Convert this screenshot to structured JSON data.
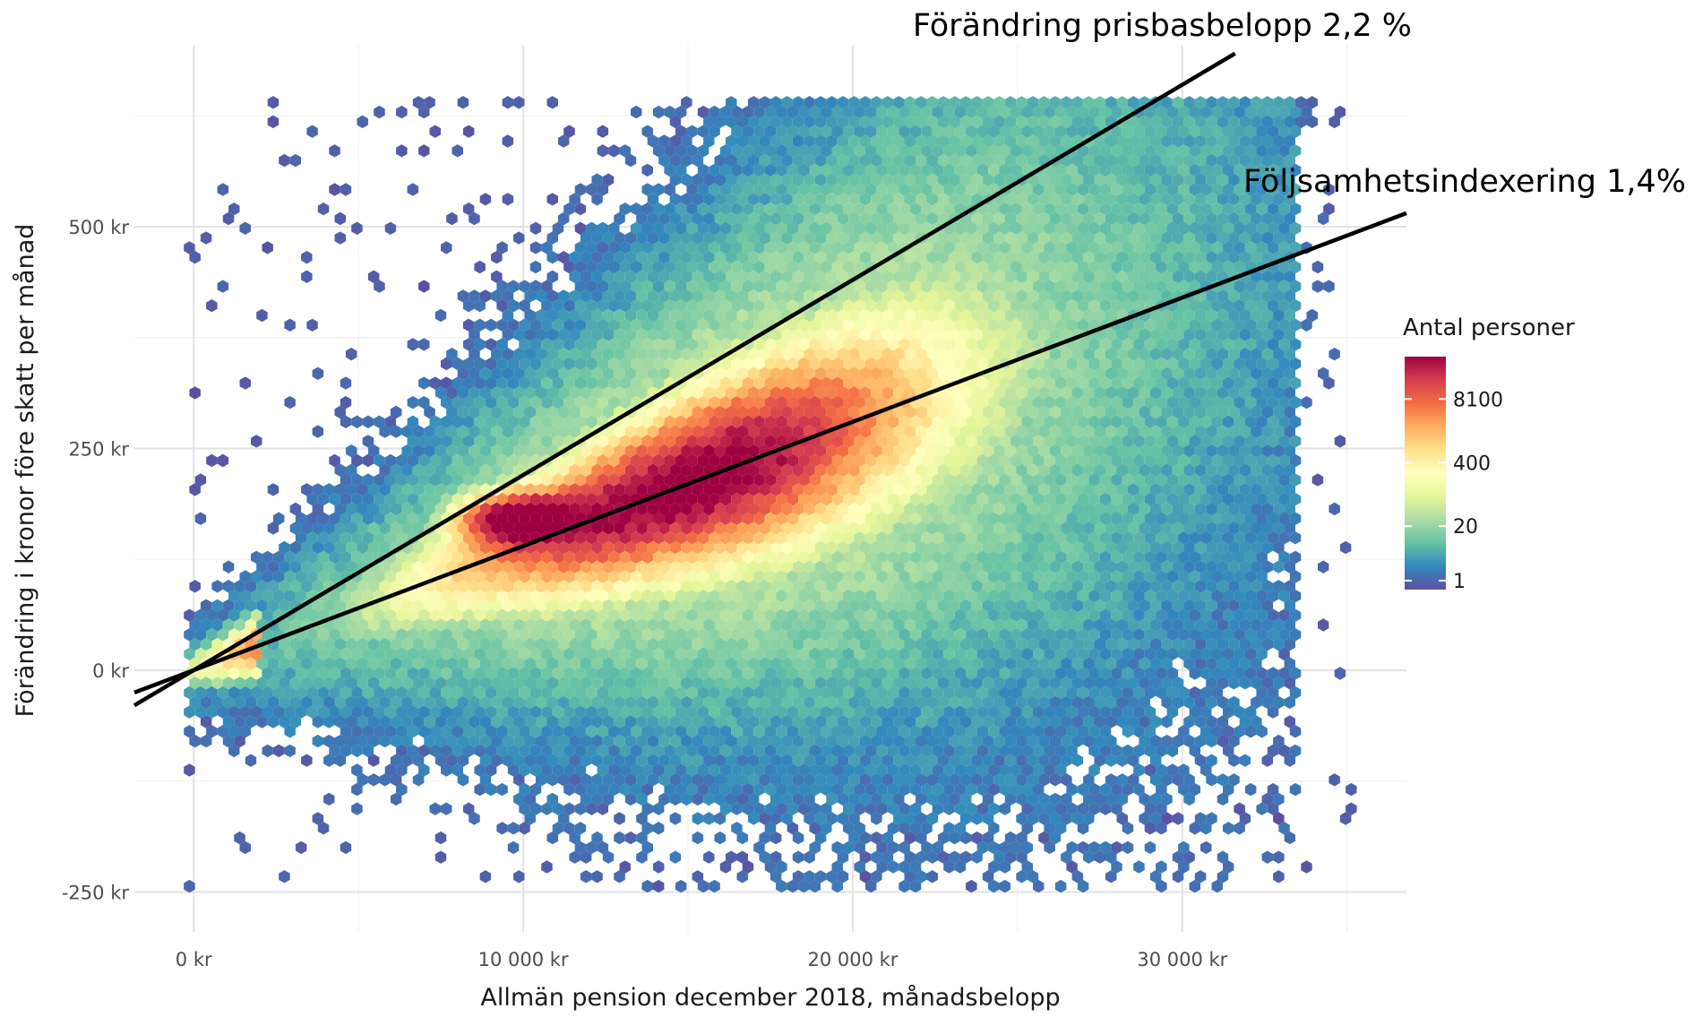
{
  "chart_data": {
    "type": "hexbin",
    "xlabel": "Allmän pension december 2018, månadsbelopp",
    "ylabel": "Förändring i kronor före skatt per månad",
    "xlim": [
      -1800,
      36800
    ],
    "ylim": [
      -295,
      705
    ],
    "x_ticks": [
      {
        "value": 0,
        "label": "0 kr"
      },
      {
        "value": 10000,
        "label": "10 000 kr"
      },
      {
        "value": 20000,
        "label": "20 000 kr"
      },
      {
        "value": 30000,
        "label": "30 000 kr"
      }
    ],
    "y_ticks": [
      {
        "value": -250,
        "label": "-250 kr"
      },
      {
        "value": 0,
        "label": "0 kr"
      },
      {
        "value": 250,
        "label": "250 kr"
      },
      {
        "value": 500,
        "label": "500 kr"
      }
    ],
    "grid": true,
    "reference_lines": [
      {
        "name": "Förändring prisbasbelopp 2,2 %",
        "slope_pct": 2.2,
        "x_range": [
          -1800,
          31600
        ]
      },
      {
        "name": "Följsamhetsindexering 1,4%",
        "slope_pct": 1.4,
        "x_range": [
          -1800,
          36800
        ]
      }
    ],
    "legend": {
      "title": "Antal personer",
      "position": "right",
      "scale": "log",
      "ticks": [
        {
          "value": 1,
          "label": "1"
        },
        {
          "value": 20,
          "label": "20"
        },
        {
          "value": 400,
          "label": "400"
        },
        {
          "value": 8100,
          "label": "8100"
        }
      ],
      "max": 60000,
      "colors": [
        "#5e4fa2",
        "#3288bd",
        "#66c2a5",
        "#abdda4",
        "#e6f598",
        "#ffffbf",
        "#fee08b",
        "#fdae61",
        "#f46d43",
        "#d53e4f",
        "#9e0142"
      ]
    },
    "density_model": {
      "description_of_distribution": "Points cluster along the 1.4% line, densest between 8 000 kr and 20 000 kr; spread fans out with increasing pension.",
      "core_band": [
        {
          "x": 0,
          "y": 0
        },
        {
          "x": 10000,
          "y": 140
        },
        {
          "x": 20000,
          "y": 280
        },
        {
          "x": 30000,
          "y": 420
        }
      ],
      "hot_spot": {
        "x": 9500,
        "y": 175
      }
    }
  }
}
